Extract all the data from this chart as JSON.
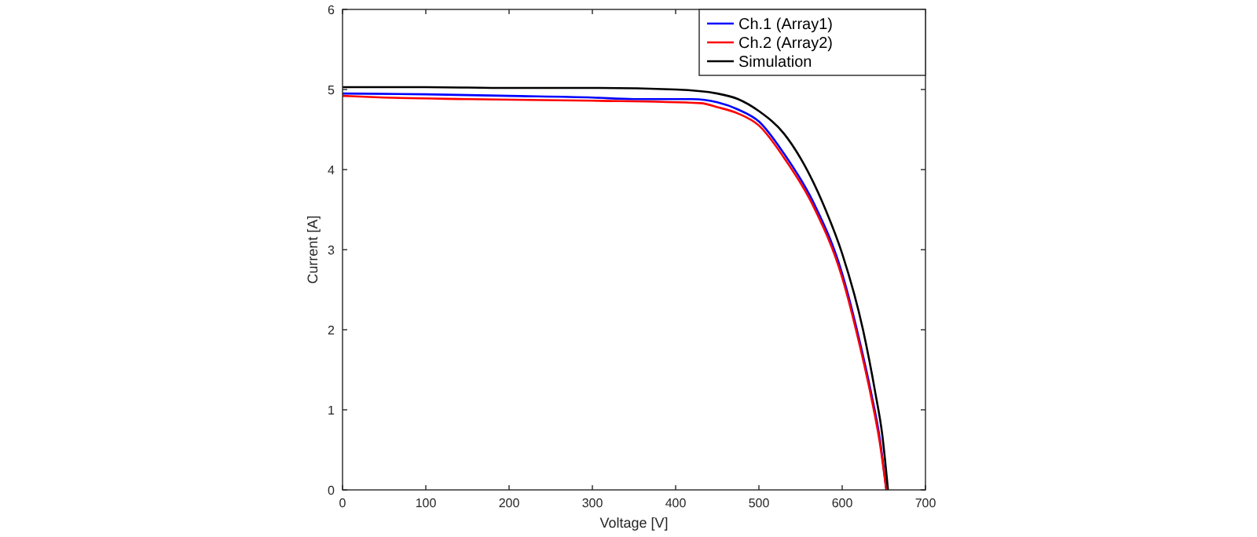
{
  "chart_data": {
    "type": "line",
    "xlabel": "Voltage [V]",
    "ylabel": "Current [A]",
    "xlim": [
      0,
      700
    ],
    "ylim": [
      0,
      6
    ],
    "xticks": [
      0,
      100,
      200,
      300,
      400,
      500,
      600,
      700
    ],
    "yticks": [
      0,
      1,
      2,
      3,
      4,
      5,
      6
    ],
    "legend": "top right",
    "grid": false,
    "marker": "none",
    "line_style": "solid",
    "series": [
      {
        "name": "Ch.1 (Array1)",
        "color": "#0000ff",
        "x": [
          0,
          100,
          200,
          300,
          350,
          420,
          450,
          475,
          500,
          530,
          565,
          600,
          620,
          635,
          645,
          653
        ],
        "values": [
          4.95,
          4.94,
          4.92,
          4.9,
          4.88,
          4.88,
          4.84,
          4.75,
          4.6,
          4.2,
          3.6,
          2.7,
          1.9,
          1.2,
          0.65,
          0
        ]
      },
      {
        "name": "Ch.2 (Array2)",
        "color": "#ff0000",
        "x": [
          0,
          50,
          150,
          300,
          430,
          450,
          475,
          500,
          530,
          565,
          600,
          620,
          635,
          645,
          653
        ],
        "values": [
          4.92,
          4.9,
          4.88,
          4.86,
          4.83,
          4.78,
          4.7,
          4.55,
          4.15,
          3.55,
          2.65,
          1.85,
          1.15,
          0.6,
          0
        ]
      },
      {
        "name": "Simulation",
        "color": "#000000",
        "x": [
          0,
          100,
          200,
          300,
          400,
          450,
          475,
          500,
          530,
          555,
          580,
          600,
          625,
          640,
          648,
          655
        ],
        "values": [
          5.03,
          5.03,
          5.02,
          5.02,
          5.0,
          4.95,
          4.88,
          4.73,
          4.45,
          4.05,
          3.5,
          2.95,
          2.0,
          1.2,
          0.7,
          0
        ]
      }
    ]
  }
}
